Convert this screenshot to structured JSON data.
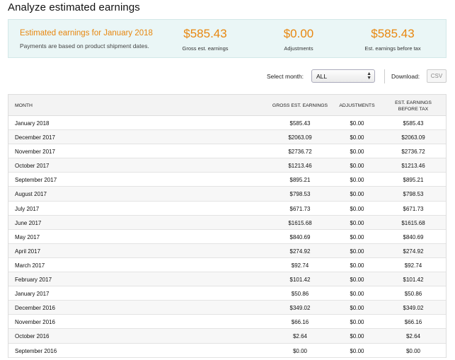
{
  "page": {
    "title": "Analyze estimated earnings"
  },
  "summary": {
    "heading": "Estimated earnings for January 2018",
    "note": "Payments are based on product shipment dates.",
    "gross": {
      "value": "$585.43",
      "label": "Gross est. earnings"
    },
    "adjustments": {
      "value": "$0.00",
      "label": "Adjustments"
    },
    "before_tax": {
      "value": "$585.43",
      "label": "Est. earnings before tax"
    }
  },
  "controls": {
    "select_month_label": "Select month:",
    "select_month_value": "ALL",
    "download_label": "Download:",
    "csv_label": "CSV"
  },
  "table": {
    "headers": {
      "month": "MONTH",
      "gross": "GROSS EST. EARNINGS",
      "adjustments": "ADJUSTMENTS",
      "before_tax_1": "EST. EARNINGS",
      "before_tax_2": "BEFORE TAX"
    },
    "rows": [
      {
        "month": "January 2018",
        "gross": "$585.43",
        "adj": "$0.00",
        "tax": "$585.43"
      },
      {
        "month": "December 2017",
        "gross": "$2063.09",
        "adj": "$0.00",
        "tax": "$2063.09"
      },
      {
        "month": "November 2017",
        "gross": "$2736.72",
        "adj": "$0.00",
        "tax": "$2736.72"
      },
      {
        "month": "October 2017",
        "gross": "$1213.46",
        "adj": "$0.00",
        "tax": "$1213.46"
      },
      {
        "month": "September 2017",
        "gross": "$895.21",
        "adj": "$0.00",
        "tax": "$895.21"
      },
      {
        "month": "August 2017",
        "gross": "$798.53",
        "adj": "$0.00",
        "tax": "$798.53"
      },
      {
        "month": "July 2017",
        "gross": "$671.73",
        "adj": "$0.00",
        "tax": "$671.73"
      },
      {
        "month": "June 2017",
        "gross": "$1615.68",
        "adj": "$0.00",
        "tax": "$1615.68"
      },
      {
        "month": "May 2017",
        "gross": "$840.69",
        "adj": "$0.00",
        "tax": "$840.69"
      },
      {
        "month": "April 2017",
        "gross": "$274.92",
        "adj": "$0.00",
        "tax": "$274.92"
      },
      {
        "month": "March 2017",
        "gross": "$92.74",
        "adj": "$0.00",
        "tax": "$92.74"
      },
      {
        "month": "February 2017",
        "gross": "$101.42",
        "adj": "$0.00",
        "tax": "$101.42"
      },
      {
        "month": "January 2017",
        "gross": "$50.86",
        "adj": "$0.00",
        "tax": "$50.86"
      },
      {
        "month": "December 2016",
        "gross": "$349.02",
        "adj": "$0.00",
        "tax": "$349.02"
      },
      {
        "month": "November 2016",
        "gross": "$66.16",
        "adj": "$0.00",
        "tax": "$66.16"
      },
      {
        "month": "October 2016",
        "gross": "$2.64",
        "adj": "$0.00",
        "tax": "$2.64"
      },
      {
        "month": "September 2016",
        "gross": "$0.00",
        "adj": "$0.00",
        "tax": "$0.00"
      }
    ]
  }
}
